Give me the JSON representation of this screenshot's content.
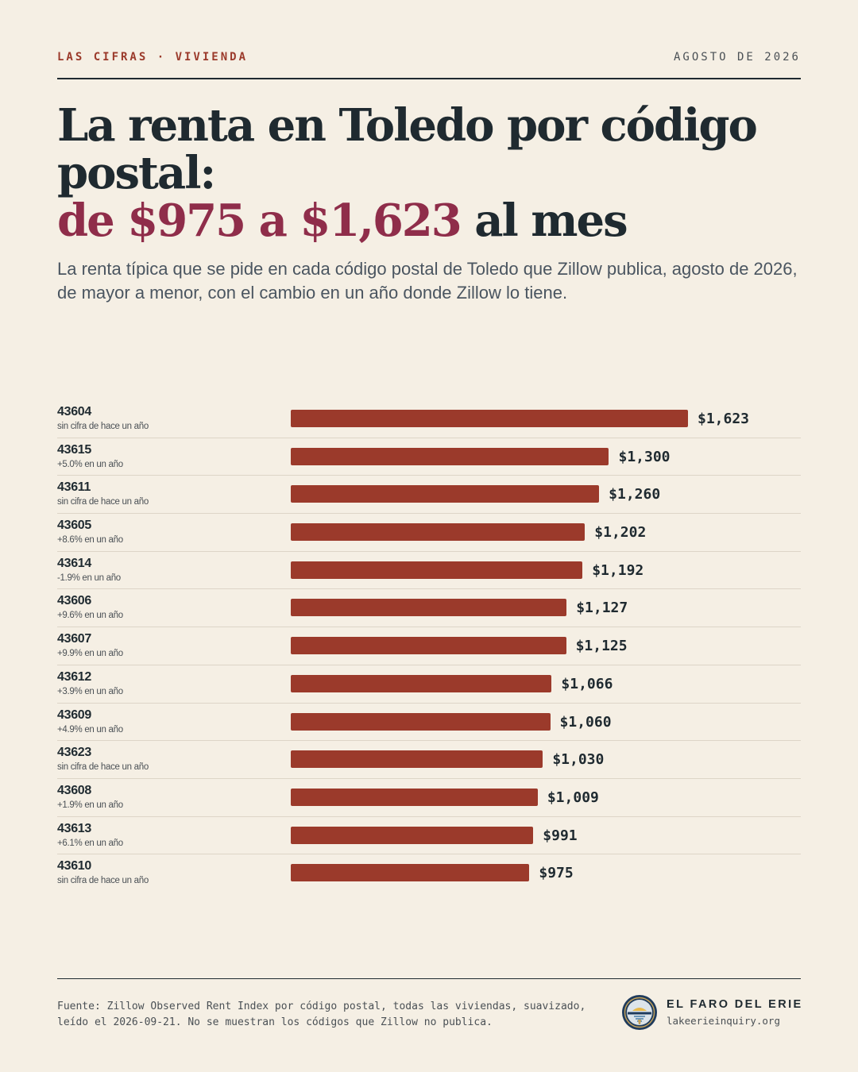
{
  "header": {
    "kicker": "LAS CIFRAS · VIVIENDA",
    "date": "AGOSTO DE 2026"
  },
  "title": {
    "line1": "La renta en Toledo por código postal:",
    "accent": "de $975 a $1,623",
    "suffix": " al mes"
  },
  "subtitle": "La renta típica que se pide en cada código postal de Toledo que Zillow publica, agosto de 2026, de mayor a menor, con el cambio en un año donde Zillow lo tiene.",
  "colors": {
    "background": "#f5efe4",
    "bar": "#9b3a2b",
    "accent": "#8f2d4a",
    "text": "#1f2a30",
    "kicker": "#9b3a2b"
  },
  "chart_data": {
    "type": "bar",
    "orientation": "horizontal",
    "categories": [
      "43604",
      "43615",
      "43611",
      "43605",
      "43614",
      "43606",
      "43607",
      "43612",
      "43609",
      "43623",
      "43608",
      "43613",
      "43610"
    ],
    "values": [
      1623,
      1300,
      1260,
      1202,
      1192,
      1127,
      1125,
      1066,
      1060,
      1030,
      1009,
      991,
      975
    ],
    "value_labels": [
      "$1,623",
      "$1,300",
      "$1,260",
      "$1,202",
      "$1,192",
      "$1,127",
      "$1,125",
      "$1,066",
      "$1,060",
      "$1,030",
      "$1,009",
      "$991",
      "$975"
    ],
    "change_labels": [
      "sin cifra de hace un año",
      "+5.0% en un año",
      "sin cifra de hace un año",
      "+8.6% en un año",
      "-1.9% en un año",
      "+9.6% en un año",
      "+9.9% en un año",
      "+3.9% en un año",
      "+4.9% en un año",
      "sin cifra de hace un año",
      "+1.9% en un año",
      "+6.1% en un año",
      "sin cifra de hace un año"
    ],
    "xlim": [
      0,
      1623
    ],
    "grid": false
  },
  "footer": {
    "source": "Fuente: Zillow Observed Rent Index por código postal, todas las viviendas, suavizado, leído el 2026-09-21. No se muestran los códigos que Zillow no publica.",
    "brand_name": "EL FARO DEL ERIE",
    "brand_url": "lakeerieinquiry.org",
    "logo_icon": "lighthouse-seal-icon"
  }
}
